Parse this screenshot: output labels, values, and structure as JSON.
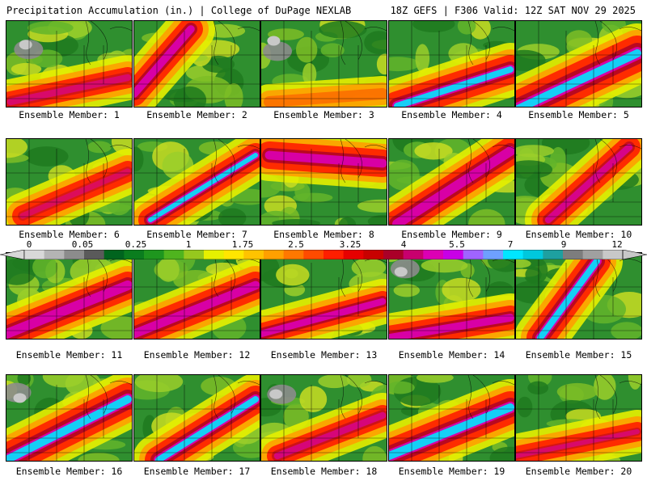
{
  "header": {
    "left": "Precipitation Accumulation (in.) | College of DuPage NEXLAB",
    "right": "18Z GEFS | F306 Valid: 12Z SAT NOV 29 2025"
  },
  "members": [
    {
      "label": "Ensemble Member: 1"
    },
    {
      "label": "Ensemble Member: 2"
    },
    {
      "label": "Ensemble Member: 3"
    },
    {
      "label": "Ensemble Member: 4"
    },
    {
      "label": "Ensemble Member: 5"
    },
    {
      "label": "Ensemble Member: 6"
    },
    {
      "label": "Ensemble Member: 7"
    },
    {
      "label": "Ensemble Member: 8"
    },
    {
      "label": "Ensemble Member: 9"
    },
    {
      "label": "Ensemble Member: 10"
    },
    {
      "label": "Ensemble Member: 11"
    },
    {
      "label": "Ensemble Member: 12"
    },
    {
      "label": "Ensemble Member: 13"
    },
    {
      "label": "Ensemble Member: 14"
    },
    {
      "label": "Ensemble Member: 15"
    },
    {
      "label": "Ensemble Member: 16"
    },
    {
      "label": "Ensemble Member: 17"
    },
    {
      "label": "Ensemble Member: 18"
    },
    {
      "label": "Ensemble Member: 19"
    },
    {
      "label": "Ensemble Member: 20"
    }
  ],
  "legend": {
    "units": "in.",
    "ticks": [
      "0",
      "0.05",
      "0.25",
      "1",
      "1.75",
      "2.5",
      "3.25",
      "4",
      "5.5",
      "7",
      "9",
      "12"
    ],
    "colors": [
      "#d8d8d8",
      "#b4b4b4",
      "#8c8c8c",
      "#5a5a5a",
      "#00641e",
      "#0a7d1e",
      "#1e961e",
      "#4fb41e",
      "#96c81e",
      "#e6f000",
      "#ffe600",
      "#ffc300",
      "#ffa000",
      "#ff7800",
      "#ff4b00",
      "#ff1e00",
      "#e60000",
      "#c80000",
      "#aa0028",
      "#c8006e",
      "#dc00b4",
      "#c800e6",
      "#a064ff",
      "#6ea0ff",
      "#00e6ff",
      "#00c8dc",
      "#1ea0a0",
      "#7d7d7d",
      "#a0a0a0",
      "#c8c8c8"
    ]
  }
}
